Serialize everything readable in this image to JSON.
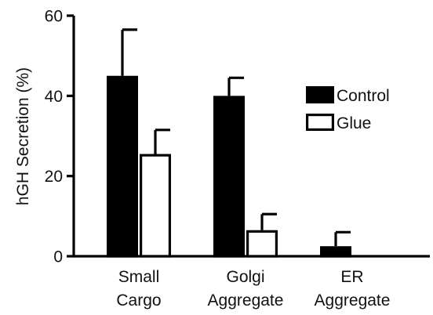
{
  "chart_data": {
    "type": "bar",
    "title": "",
    "ylabel": "hGH Secretion (%)",
    "xlabel": "",
    "ylim": [
      0,
      60
    ],
    "yticks": [
      0,
      20,
      40,
      60
    ],
    "categories": [
      [
        "Small",
        "Cargo"
      ],
      [
        "Golgi",
        "Aggregate"
      ],
      [
        "ER",
        "Aggregate"
      ]
    ],
    "series": [
      {
        "name": "Control",
        "values": [
          45,
          40,
          2.5
        ],
        "errors": [
          11.5,
          4.5,
          3.5
        ],
        "fill": "#000000"
      },
      {
        "name": "Glue",
        "values": [
          25.5,
          6.5,
          0
        ],
        "errors": [
          6,
          4,
          0
        ],
        "fill": "#ffffff"
      }
    ],
    "legend_position": "right",
    "grid": false
  }
}
